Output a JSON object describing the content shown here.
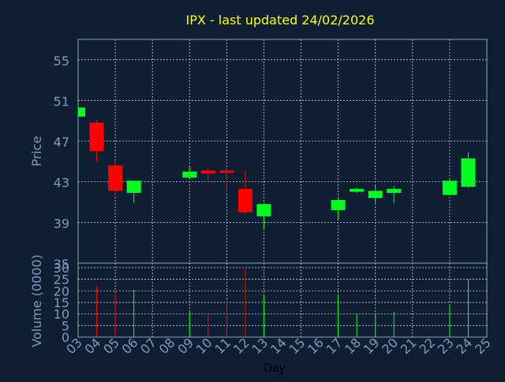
{
  "chart_data": [
    {
      "type": "candlestick",
      "title": "IPX - last updated 24/02/2026",
      "ylabel": "Price",
      "ylim": [
        35,
        57
      ],
      "yticks": [
        "35",
        "39",
        "43",
        "47",
        "51",
        "55"
      ],
      "grid": true,
      "up_color": "#00ff22",
      "down_color": "#ff0000",
      "candles": [
        {
          "day": "03",
          "open": 49.4,
          "high": 50.3,
          "low": 49.4,
          "close": 50.3
        },
        {
          "day": "04",
          "open": 48.8,
          "high": 49.1,
          "low": 45.0,
          "close": 46.0
        },
        {
          "day": "05",
          "open": 44.6,
          "high": 45.0,
          "low": 41.7,
          "close": 42.1
        },
        {
          "day": "06",
          "open": 41.9,
          "high": 43.1,
          "low": 40.9,
          "close": 43.1
        },
        {
          "day": "09",
          "open": 43.4,
          "high": 44.5,
          "low": 43.3,
          "close": 44.0
        },
        {
          "day": "10",
          "open": 44.1,
          "high": 44.3,
          "low": 43.1,
          "close": 43.8
        },
        {
          "day": "11",
          "open": 44.1,
          "high": 44.3,
          "low": 41.8,
          "close": 44.0
        },
        {
          "day": "12",
          "open": 42.3,
          "high": 44.1,
          "low": 39.8,
          "close": 40.0
        },
        {
          "day": "13",
          "open": 39.6,
          "high": 40.9,
          "low": 38.4,
          "close": 40.8
        },
        {
          "day": "17",
          "open": 40.2,
          "high": 41.5,
          "low": 39.3,
          "close": 41.2
        },
        {
          "day": "18",
          "open": 42.0,
          "high": 42.4,
          "low": 41.9,
          "close": 42.3
        },
        {
          "day": "19",
          "open": 41.4,
          "high": 42.6,
          "low": 40.9,
          "close": 42.1
        },
        {
          "day": "20",
          "open": 41.9,
          "high": 42.6,
          "low": 40.9,
          "close": 42.3
        },
        {
          "day": "23",
          "open": 41.7,
          "high": 43.2,
          "low": 41.7,
          "close": 43.1
        },
        {
          "day": "24",
          "open": 42.5,
          "high": 45.9,
          "low": 42.4,
          "close": 45.3
        }
      ]
    },
    {
      "type": "bar",
      "xlabel": "Day",
      "ylabel": "Volume (0000)",
      "ylim": [
        0,
        32
      ],
      "yticks": [
        "0",
        "5",
        "10",
        "15",
        "20",
        "25",
        "30"
      ],
      "grid": true,
      "categories": [
        "03",
        "04",
        "05",
        "06",
        "07",
        "08",
        "09",
        "10",
        "11",
        "12",
        "13",
        "14",
        "15",
        "16",
        "17",
        "18",
        "19",
        "20",
        "21",
        "22",
        "23",
        "24",
        "25"
      ],
      "values": [
        null,
        22,
        18.5,
        20.5,
        null,
        null,
        11,
        10,
        16,
        30,
        18,
        null,
        null,
        null,
        18,
        10,
        10.5,
        11,
        null,
        null,
        14,
        25,
        null
      ],
      "colors": [
        "",
        "down",
        "down",
        "up",
        "",
        "",
        "up",
        "down",
        "down",
        "down",
        "up",
        "",
        "",
        "",
        "up",
        "up",
        "up",
        "up",
        "",
        "",
        "up",
        "up",
        ""
      ]
    }
  ],
  "colors": {
    "background": "#0f1f33",
    "plot_border": "#8aa3c2",
    "grid": "#c8d3df",
    "title": "#ffff00",
    "axis_text": "#7f98bb",
    "xlabel_text": "#000000"
  }
}
